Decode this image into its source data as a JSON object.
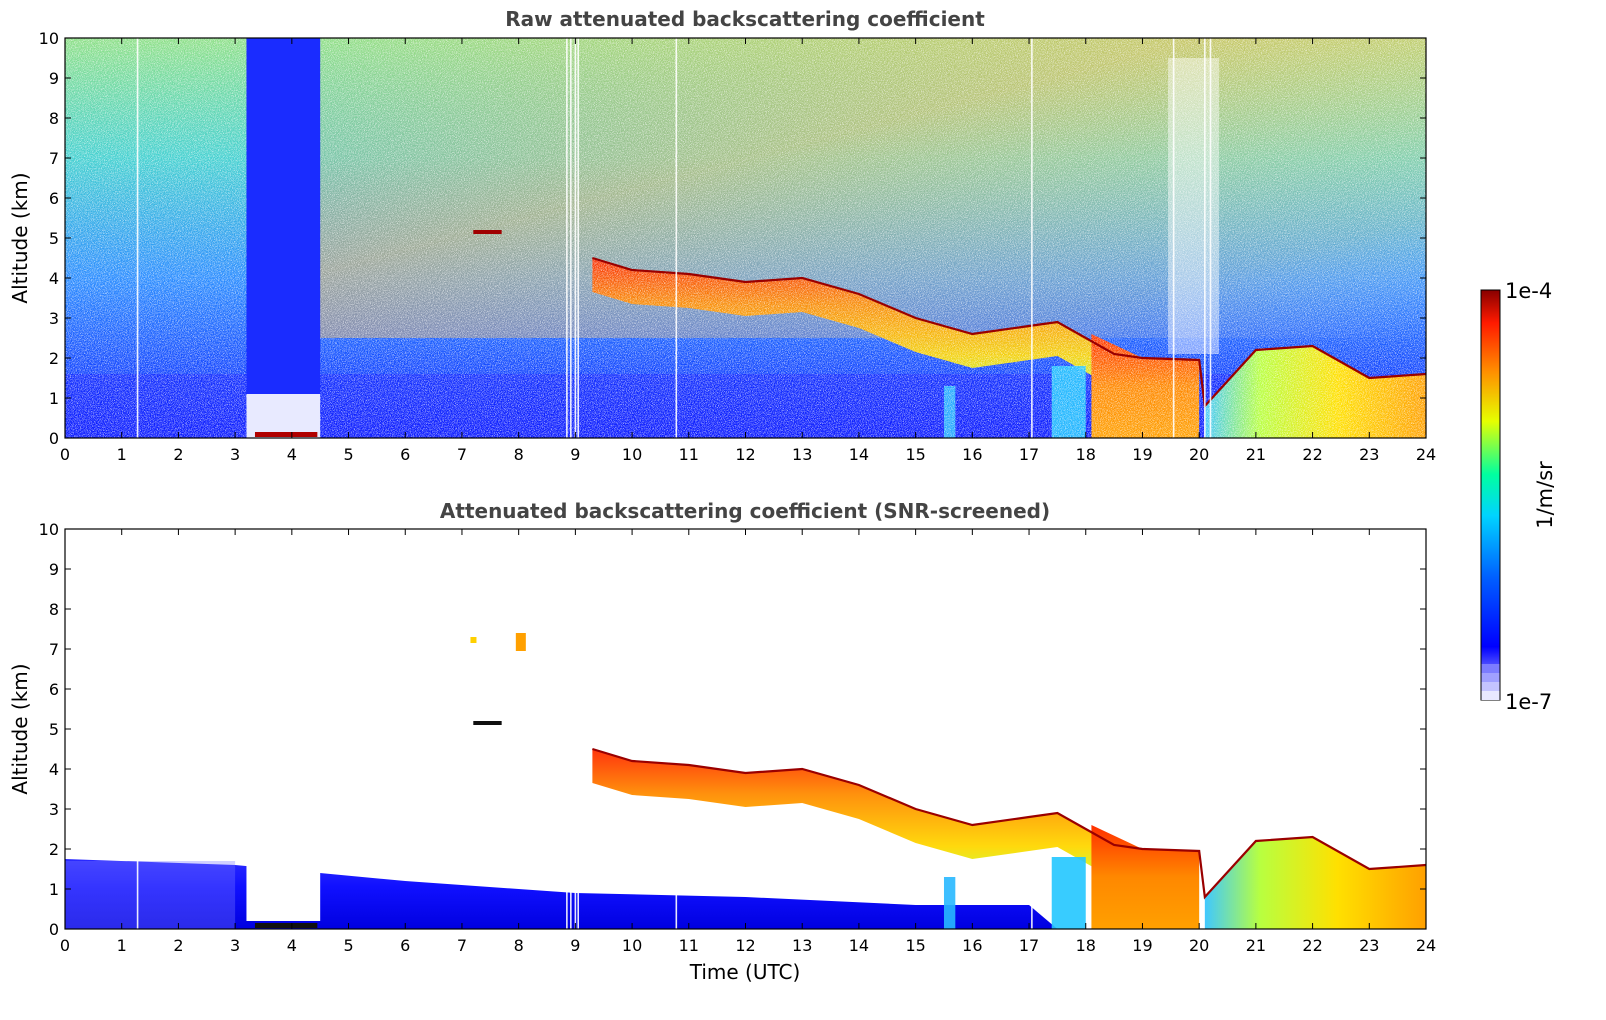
{
  "chart_data": [
    {
      "type": "heatmap",
      "title": "Raw attenuated backscattering coefficient",
      "xlabel": "",
      "ylabel": "Altitude (km)",
      "xlim": [
        0,
        24
      ],
      "ylim": [
        0,
        10
      ],
      "x_ticks": [
        0,
        1,
        2,
        3,
        4,
        5,
        6,
        7,
        8,
        9,
        10,
        11,
        12,
        13,
        14,
        15,
        16,
        17,
        18,
        19,
        20,
        21,
        22,
        23,
        24
      ],
      "y_ticks": [
        0,
        1,
        2,
        3,
        4,
        5,
        6,
        7,
        8,
        9,
        10
      ],
      "log_color_scale": true,
      "features": {
        "cloud_top_km": {
          "x": [
            9.3,
            10,
            11,
            12,
            13,
            14,
            15,
            16,
            17,
            17.5,
            18,
            18.5,
            19,
            20,
            20.1,
            21,
            22,
            23,
            24
          ],
          "y": [
            4.5,
            4.2,
            4.1,
            3.9,
            4.0,
            3.6,
            3.0,
            2.6,
            2.8,
            2.9,
            2.5,
            2.1,
            2.0,
            1.95,
            0.8,
            2.2,
            2.3,
            1.5,
            1.6
          ]
        },
        "elevated_layer": {
          "x": [
            7.2,
            7.7
          ],
          "y": [
            5.15,
            5.15
          ]
        },
        "blanked_region": {
          "x": [
            3.2,
            4.5
          ],
          "y": [
            0,
            10
          ]
        }
      }
    },
    {
      "type": "heatmap",
      "title": "Attenuated backscattering coefficient (SNR-screened)",
      "xlabel": "Time (UTC)",
      "ylabel": "Altitude (km)",
      "xlim": [
        0,
        24
      ],
      "ylim": [
        0,
        10
      ],
      "x_ticks": [
        0,
        1,
        2,
        3,
        4,
        5,
        6,
        7,
        8,
        9,
        10,
        11,
        12,
        13,
        14,
        15,
        16,
        17,
        18,
        19,
        20,
        21,
        22,
        23,
        24
      ],
      "y_ticks": [
        0,
        1,
        2,
        3,
        4,
        5,
        6,
        7,
        8,
        9,
        10
      ],
      "log_color_scale": true,
      "features": {
        "boundary_layer_top_km": {
          "x": [
            0,
            3,
            6,
            9,
            12,
            15,
            17
          ],
          "y": [
            1.75,
            1.6,
            1.2,
            0.9,
            0.8,
            0.6,
            0.6
          ]
        },
        "cloud_top_km": {
          "x": [
            9.3,
            10,
            11,
            12,
            13,
            14,
            15,
            16,
            17,
            17.5,
            18,
            18.5,
            19,
            20,
            20.1,
            21,
            22,
            23,
            24
          ],
          "y": [
            4.5,
            4.2,
            4.1,
            3.9,
            4.0,
            3.6,
            3.0,
            2.6,
            2.8,
            2.9,
            2.5,
            2.1,
            2.0,
            1.95,
            0.8,
            2.2,
            2.3,
            1.5,
            1.6
          ]
        }
      }
    }
  ],
  "colorbar": {
    "label": "1/m/sr",
    "max_label": "1e-4",
    "min_label": "1e-7",
    "colors": [
      "#e8e8ff",
      "#0000ff",
      "#00aaff",
      "#00ffd0",
      "#e6ff00",
      "#ff8000",
      "#ff2000",
      "#880000"
    ]
  }
}
